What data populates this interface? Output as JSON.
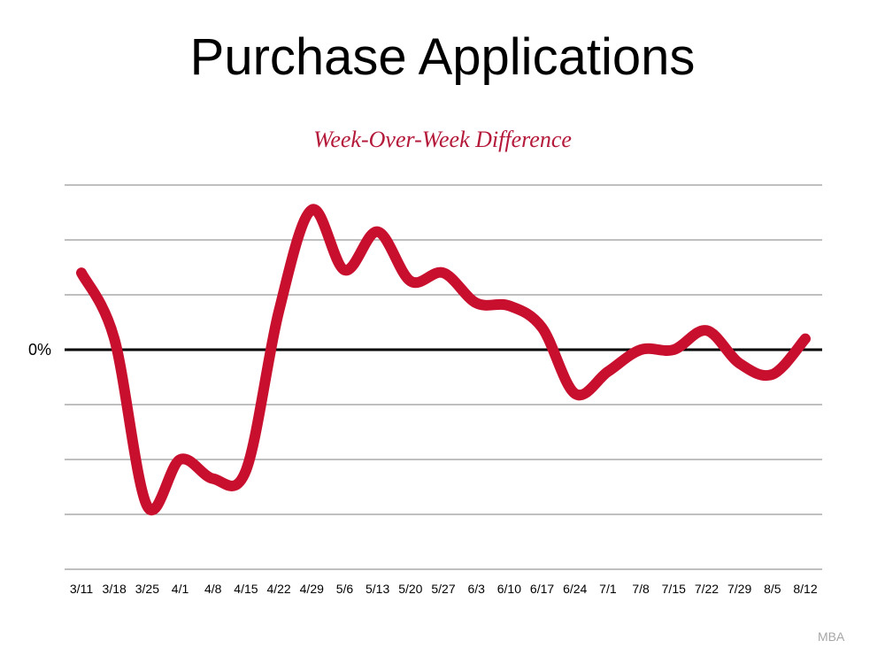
{
  "title": "Purchase Applications",
  "source": "MBA",
  "chart_data": {
    "type": "line",
    "title": "Week-Over-Week Difference",
    "xlabel": "",
    "ylabel": "",
    "zero_label": "0%",
    "categories": [
      "3/11",
      "3/18",
      "3/25",
      "4/1",
      "4/8",
      "4/15",
      "4/22",
      "4/29",
      "5/6",
      "5/13",
      "5/20",
      "5/27",
      "6/3",
      "6/10",
      "6/17",
      "6/24",
      "7/1",
      "7/8",
      "7/15",
      "7/22",
      "7/29",
      "8/5",
      "8/12"
    ],
    "series": [
      {
        "values": [
          0.14,
          0.02,
          -0.285,
          -0.2,
          -0.235,
          -0.22,
          0.07,
          0.255,
          0.145,
          0.215,
          0.125,
          0.14,
          0.085,
          0.08,
          0.04,
          -0.08,
          -0.04,
          0.0,
          0.0,
          0.035,
          -0.025,
          -0.045,
          0.02
        ],
        "color": "#c8102e"
      }
    ],
    "ylim": [
      -0.4,
      0.3
    ],
    "grid": true,
    "gridline_values": [
      0.3,
      0.2,
      0.1,
      0.0,
      -0.1,
      -0.2,
      -0.3,
      -0.4
    ],
    "zero_line": true,
    "legend": "none"
  }
}
